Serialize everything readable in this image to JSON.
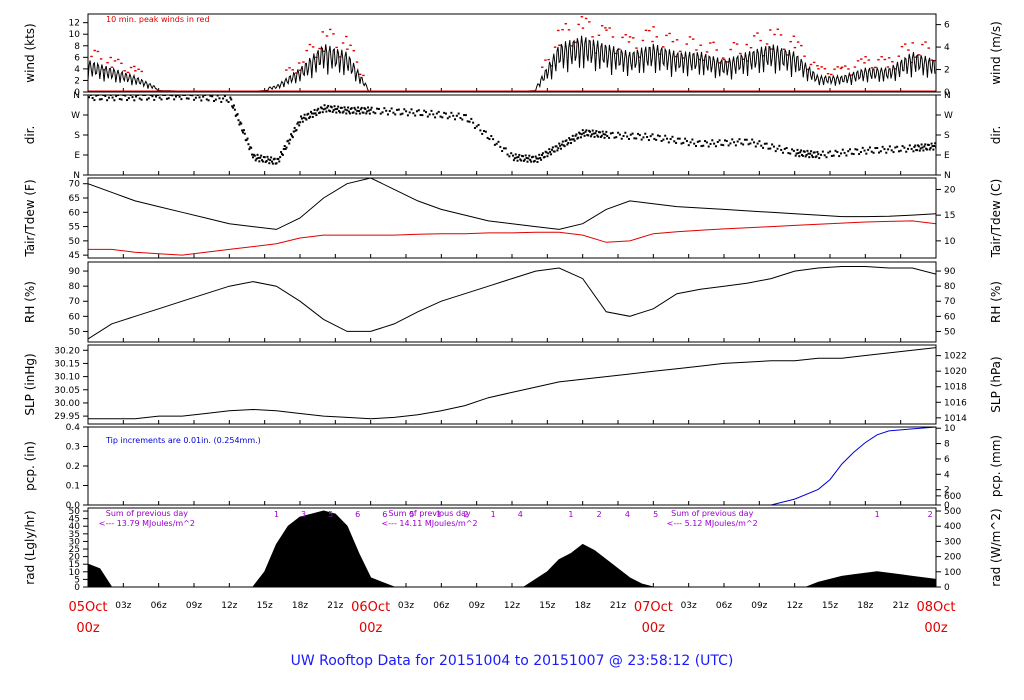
{
  "title": "UW Rooftop Data for 20151004  to  20151007 @ 23:58:12  (UTC)",
  "colors": {
    "black": "#000000",
    "red": "#e00000",
    "blue": "#0000dd",
    "purple": "#9900cc",
    "title_blue": "#1a1aff",
    "axis_red": "#e00000"
  },
  "x_axis": {
    "day_labels": [
      "05Oct",
      "06Oct",
      "07Oct",
      "08Oct"
    ],
    "day_sub": "00z",
    "hour_ticks": [
      "03z",
      "06z",
      "09z",
      "12z",
      "15z",
      "18z",
      "21z",
      "03z",
      "06z",
      "09z",
      "12z",
      "15z",
      "18z",
      "21z",
      "03z",
      "06z",
      "09z",
      "12z",
      "15z",
      "18z",
      "21z"
    ],
    "range_hours": [
      0,
      72
    ]
  },
  "panels": [
    {
      "id": "wind",
      "ylabel_left": "wind (kts)",
      "ylabel_right": "wind (m/s)",
      "left_ticks": [
        "0",
        "2",
        "4",
        "6",
        "8",
        "10",
        "12"
      ],
      "right_ticks": [
        "0",
        "2",
        "4",
        "6"
      ],
      "note": "10 min. peak winds in red"
    },
    {
      "id": "dir",
      "ylabel_left": "dir.",
      "ylabel_right": "dir.",
      "left_ticks": [
        "N",
        "E",
        "S",
        "W",
        "N"
      ],
      "right_ticks": [
        "N",
        "E",
        "S",
        "W",
        "N"
      ]
    },
    {
      "id": "temp",
      "ylabel_left": "Tair/Tdew (F)",
      "ylabel_right": "Tair/Tdew (C)",
      "left_ticks": [
        "45",
        "50",
        "55",
        "60",
        "65",
        "70"
      ],
      "right_ticks": [
        "10",
        "15",
        "20"
      ]
    },
    {
      "id": "rh",
      "ylabel_left": "RH (%)",
      "ylabel_right": "RH (%)",
      "left_ticks": [
        "50",
        "60",
        "70",
        "80",
        "90"
      ],
      "right_ticks": [
        "50",
        "60",
        "70",
        "80",
        "90"
      ]
    },
    {
      "id": "slp",
      "ylabel_left": "SLP (inHg)",
      "ylabel_right": "SLP (hPa)",
      "left_ticks": [
        "29.95",
        "30.00",
        "30.05",
        "30.10",
        "30.15",
        "30.20"
      ],
      "right_ticks": [
        "1014",
        "1016",
        "1018",
        "1020",
        "1022"
      ]
    },
    {
      "id": "pcp",
      "ylabel_left": "pcp. (in)",
      "ylabel_right": "pcp. (mm)",
      "left_ticks": [
        "0.0",
        "0.1",
        "0.2",
        "0.3",
        "0.4"
      ],
      "right_ticks": [
        "0",
        "2",
        "4",
        "6",
        "8",
        "10"
      ],
      "note": "Tip increments are 0.01in. (0.254mm.)"
    },
    {
      "id": "rad",
      "ylabel_left": "rad (Lgly/hr)",
      "ylabel_right": "rad (W/m^2)",
      "left_ticks": [
        "0",
        "5",
        "10",
        "15",
        "20",
        "25",
        "30",
        "35",
        "40",
        "45",
        "50"
      ],
      "right_ticks": [
        "0",
        "100",
        "200",
        "300",
        "400",
        "500",
        "600"
      ],
      "sum_label": "Sum of previous day",
      "sums": [
        "<--- 13.79 MJoules/m^2",
        "<--- 14.11 MJoules/m^2",
        "<--- 5.12 MJoules/m^2"
      ],
      "uv_day1": [
        "1",
        "3",
        "5",
        "6",
        "6",
        "5",
        "1",
        "2",
        "1",
        "4"
      ],
      "uv_day2": [
        "1",
        "2",
        "4",
        "5"
      ],
      "uv_day3": [
        "1",
        "2"
      ]
    }
  ],
  "chart_data": [
    {
      "type": "line",
      "title": "10 min. peak winds in red",
      "ylabel": "wind (kts)",
      "ylim": [
        0,
        13.5
      ],
      "x": [
        0,
        2,
        4,
        6,
        8,
        10,
        12,
        14,
        16,
        18,
        20,
        22,
        24,
        26,
        28,
        30,
        32,
        34,
        36,
        38,
        40,
        42,
        44,
        46,
        48,
        50,
        52,
        54,
        56,
        58,
        60,
        62,
        64,
        66,
        68,
        70,
        72
      ],
      "series": [
        {
          "name": "wind",
          "values": [
            4,
            3,
            2,
            0.5,
            0.3,
            0,
            0,
            0.2,
            0.8,
            3,
            6,
            5,
            0,
            0,
            0,
            0,
            0,
            0,
            0,
            0.5,
            6,
            7,
            6,
            5,
            6,
            5,
            5,
            4,
            5,
            6,
            5,
            2,
            2,
            3,
            3,
            5,
            4
          ]
        }
      ]
    },
    {
      "type": "scatter",
      "title": "",
      "ylabel": "dir.",
      "ylim": [
        0,
        360
      ],
      "x": [
        0,
        4,
        8,
        12,
        14,
        16,
        18,
        20,
        22,
        24,
        28,
        32,
        36,
        38,
        40,
        42,
        44,
        48,
        52,
        56,
        60,
        62,
        66,
        70,
        72
      ],
      "series": [
        {
          "name": "direction",
          "values": [
            350,
            350,
            355,
            340,
            80,
            60,
            250,
            300,
            290,
            290,
            280,
            260,
            80,
            70,
            130,
            190,
            180,
            170,
            140,
            150,
            100,
            90,
            110,
            120,
            130
          ]
        }
      ]
    },
    {
      "type": "line",
      "title": "",
      "ylabel": "Tair/Tdew (F)",
      "ylim": [
        44,
        72
      ],
      "x": [
        0,
        2,
        4,
        6,
        8,
        10,
        12,
        14,
        16,
        18,
        20,
        22,
        24,
        26,
        28,
        30,
        32,
        34,
        36,
        38,
        40,
        42,
        44,
        46,
        48,
        50,
        52,
        54,
        56,
        58,
        60,
        62,
        64,
        66,
        68,
        70,
        72
      ],
      "series": [
        {
          "name": "Tair",
          "values": [
            70,
            67,
            64,
            62,
            60,
            58,
            56,
            55,
            54,
            58,
            65,
            70,
            72,
            68,
            64,
            61,
            59,
            57,
            56,
            55,
            54,
            56,
            61,
            64,
            63,
            62,
            61.5,
            61,
            60.5,
            60,
            59.5,
            59,
            58.5,
            58.5,
            58.6,
            59,
            59.5
          ]
        },
        {
          "name": "Tdew",
          "values": [
            47,
            47,
            46,
            45.5,
            45,
            46,
            47,
            48,
            49,
            51,
            52,
            52,
            52,
            52,
            52.3,
            52.5,
            52.5,
            52.8,
            52.8,
            53,
            53,
            52,
            49.5,
            50,
            52.5,
            53.2,
            53.7,
            54.2,
            54.6,
            55,
            55.4,
            55.8,
            56.2,
            56.6,
            56.8,
            57,
            56
          ]
        }
      ]
    },
    {
      "type": "line",
      "title": "",
      "ylabel": "RH (%)",
      "ylim": [
        43,
        96
      ],
      "x": [
        0,
        2,
        4,
        6,
        8,
        10,
        12,
        14,
        16,
        18,
        20,
        22,
        24,
        26,
        28,
        30,
        32,
        34,
        36,
        38,
        40,
        42,
        44,
        46,
        48,
        50,
        52,
        54,
        56,
        58,
        60,
        62,
        64,
        66,
        68,
        70,
        72
      ],
      "series": [
        {
          "name": "RH",
          "values": [
            45,
            55,
            60,
            65,
            70,
            75,
            80,
            83,
            80,
            70,
            58,
            50,
            50,
            55,
            63,
            70,
            75,
            80,
            85,
            90,
            92,
            85,
            63,
            60,
            65,
            75,
            78,
            80,
            82,
            85,
            90,
            92,
            93,
            93,
            92,
            92,
            88
          ]
        }
      ]
    },
    {
      "type": "line",
      "title": "",
      "ylabel": "SLP (inHg)",
      "ylim": [
        29.92,
        30.22
      ],
      "x": [
        0,
        2,
        4,
        6,
        8,
        10,
        12,
        14,
        16,
        18,
        20,
        22,
        24,
        26,
        28,
        30,
        32,
        34,
        36,
        38,
        40,
        42,
        44,
        46,
        48,
        50,
        52,
        54,
        56,
        58,
        60,
        62,
        64,
        66,
        68,
        70,
        72
      ],
      "series": [
        {
          "name": "SLP",
          "values": [
            29.94,
            29.94,
            29.94,
            29.95,
            29.95,
            29.96,
            29.97,
            29.975,
            29.97,
            29.96,
            29.95,
            29.945,
            29.94,
            29.945,
            29.955,
            29.97,
            29.99,
            30.02,
            30.04,
            30.06,
            30.08,
            30.09,
            30.1,
            30.11,
            30.12,
            30.13,
            30.14,
            30.15,
            30.155,
            30.16,
            30.16,
            30.17,
            30.17,
            30.18,
            30.19,
            30.2,
            30.21
          ]
        }
      ]
    },
    {
      "type": "line",
      "title": "Tip increments are 0.01in. (0.254mm.)",
      "ylabel": "pcp. (in)",
      "ylim": [
        0,
        0.4
      ],
      "x": [
        0,
        58,
        60,
        62,
        63,
        64,
        65,
        66,
        67,
        68,
        70,
        72
      ],
      "series": [
        {
          "name": "precip",
          "values": [
            0,
            0,
            0.03,
            0.08,
            0.13,
            0.21,
            0.27,
            0.32,
            0.36,
            0.38,
            0.39,
            0.4
          ]
        }
      ]
    },
    {
      "type": "area",
      "title": "",
      "ylabel": "rad (Lgly/hr)",
      "ylim": [
        0,
        52
      ],
      "x": [
        0,
        1,
        2,
        12,
        14,
        15,
        16,
        17,
        18,
        19,
        20,
        21,
        22,
        23,
        24,
        26,
        36,
        37,
        38,
        39,
        40,
        41,
        42,
        43,
        44,
        45,
        46,
        47,
        48,
        50,
        60,
        61,
        62,
        63,
        64,
        65,
        66,
        67,
        68,
        69,
        70,
        71,
        72
      ],
      "series": [
        {
          "name": "radiation",
          "values": [
            15,
            12,
            0,
            0,
            0,
            10,
            28,
            40,
            46,
            48,
            50,
            48,
            40,
            22,
            6,
            0,
            0,
            0,
            5,
            10,
            18,
            22,
            28,
            24,
            18,
            12,
            6,
            2,
            0,
            0,
            0,
            0,
            3,
            5,
            7,
            8,
            9,
            10,
            9,
            8,
            7,
            6,
            5
          ]
        }
      ]
    }
  ]
}
